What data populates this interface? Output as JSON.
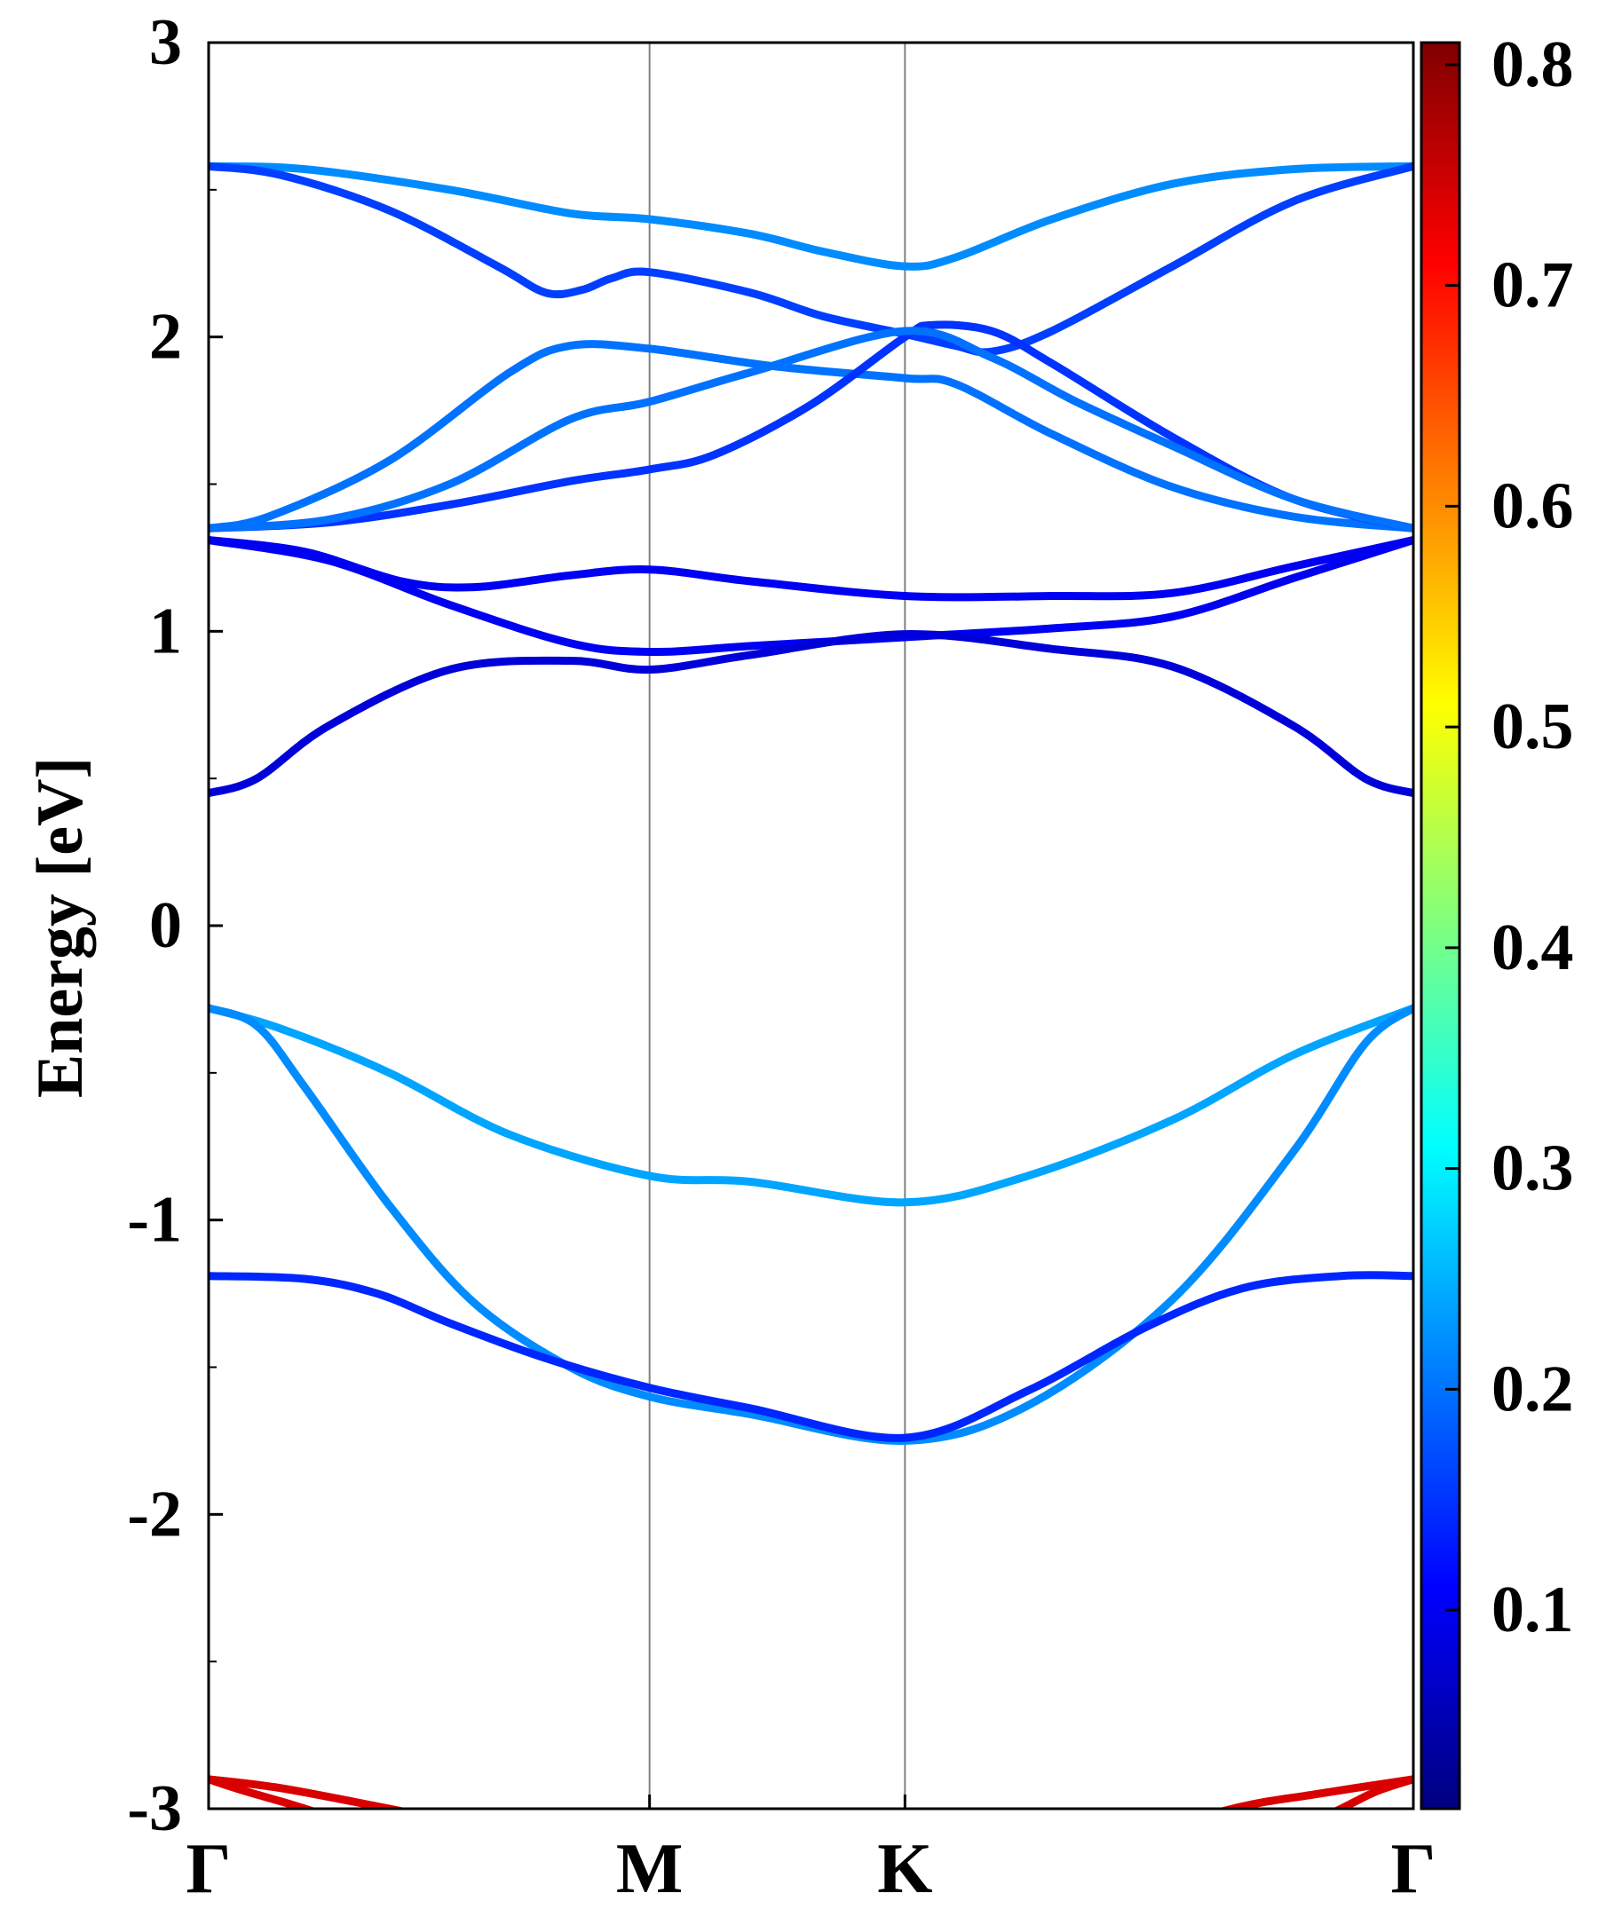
{
  "chart_data": {
    "type": "line",
    "title": "",
    "ylabel": "Energy [eV]",
    "xlabel": "",
    "ylim": [
      -3,
      3
    ],
    "y_major_ticks": [
      -3,
      -2,
      -1,
      0,
      1,
      2,
      3
    ],
    "y_tick_labels": [
      "-3",
      "-2",
      "-1",
      "0",
      "1",
      "2",
      "3"
    ],
    "y_minor_ticks": [
      -2.5,
      -1.5,
      -0.5,
      0.5,
      1.5,
      2.5
    ],
    "k_points": [
      {
        "label": "Γ",
        "x": 0.0
      },
      {
        "label": "M",
        "x": 0.366
      },
      {
        "label": "K",
        "x": 0.578
      },
      {
        "label": "Γ",
        "x": 1.0
      }
    ],
    "grid": "vertical lines at high-symmetry points",
    "colorbar": {
      "colormap": "jet",
      "range": [
        0.01,
        0.81
      ],
      "ticks": [
        0.1,
        0.2,
        0.3,
        0.4,
        0.5,
        0.6,
        0.7,
        0.8
      ],
      "tick_labels": [
        "0.1",
        "0.2",
        "0.3",
        "0.4",
        "0.5",
        "0.6",
        "0.7",
        "0.8"
      ],
      "colors": [
        "#00007f",
        "#0000ff",
        "#007fff",
        "#00ffff",
        "#7fff7f",
        "#ffff00",
        "#ff7f00",
        "#ff0000",
        "#7f0000"
      ]
    },
    "series": [
      {
        "weight": 0.22,
        "points": [
          [
            0,
            2.58
          ],
          [
            0.08,
            2.57
          ],
          [
            0.2,
            2.5
          ],
          [
            0.3,
            2.42
          ],
          [
            0.366,
            2.4
          ],
          [
            0.45,
            2.35
          ],
          [
            0.51,
            2.29
          ],
          [
            0.578,
            2.24
          ],
          [
            0.62,
            2.27
          ],
          [
            0.7,
            2.4
          ],
          [
            0.8,
            2.52
          ],
          [
            0.9,
            2.57
          ],
          [
            1,
            2.58
          ]
        ]
      },
      {
        "weight": 0.16,
        "points": [
          [
            0,
            2.58
          ],
          [
            0.06,
            2.55
          ],
          [
            0.15,
            2.43
          ],
          [
            0.24,
            2.24
          ],
          [
            0.28,
            2.15
          ],
          [
            0.31,
            2.16
          ],
          [
            0.335,
            2.2
          ],
          [
            0.366,
            2.22
          ],
          [
            0.45,
            2.15
          ],
          [
            0.51,
            2.07
          ],
          [
            0.578,
            2.01
          ],
          [
            0.62,
            1.97
          ],
          [
            0.65,
            1.95
          ],
          [
            0.7,
            2.02
          ],
          [
            0.8,
            2.24
          ],
          [
            0.9,
            2.46
          ],
          [
            1,
            2.58
          ]
        ]
      },
      {
        "weight": 0.2,
        "points": [
          [
            0,
            1.35
          ],
          [
            0.05,
            1.39
          ],
          [
            0.15,
            1.58
          ],
          [
            0.25,
            1.88
          ],
          [
            0.3,
            1.97
          ],
          [
            0.366,
            1.96
          ],
          [
            0.47,
            1.9
          ],
          [
            0.578,
            1.86
          ],
          [
            0.62,
            1.84
          ],
          [
            0.7,
            1.67
          ],
          [
            0.8,
            1.49
          ],
          [
            0.9,
            1.39
          ],
          [
            1,
            1.35
          ]
        ]
      },
      {
        "weight": 0.15,
        "points": [
          [
            0,
            1.35
          ],
          [
            0.1,
            1.37
          ],
          [
            0.2,
            1.43
          ],
          [
            0.3,
            1.51
          ],
          [
            0.366,
            1.55
          ],
          [
            0.42,
            1.6
          ],
          [
            0.5,
            1.77
          ],
          [
            0.578,
            2.0
          ],
          [
            0.6,
            2.04
          ],
          [
            0.65,
            2.02
          ],
          [
            0.7,
            1.91
          ],
          [
            0.8,
            1.66
          ],
          [
            0.9,
            1.45
          ],
          [
            1,
            1.35
          ]
        ]
      },
      {
        "weight": 0.2,
        "points": [
          [
            0,
            1.35
          ],
          [
            0.1,
            1.38
          ],
          [
            0.2,
            1.5
          ],
          [
            0.3,
            1.72
          ],
          [
            0.366,
            1.78
          ],
          [
            0.45,
            1.88
          ],
          [
            0.578,
            2.02
          ],
          [
            0.65,
            1.93
          ],
          [
            0.72,
            1.78
          ],
          [
            0.8,
            1.63
          ],
          [
            0.9,
            1.45
          ],
          [
            1,
            1.35
          ]
        ]
      },
      {
        "weight": 0.1,
        "points": [
          [
            0,
            1.31
          ],
          [
            0.08,
            1.27
          ],
          [
            0.16,
            1.17
          ],
          [
            0.22,
            1.15
          ],
          [
            0.3,
            1.19
          ],
          [
            0.366,
            1.21
          ],
          [
            0.45,
            1.17
          ],
          [
            0.578,
            1.12
          ],
          [
            0.7,
            1.12
          ],
          [
            0.8,
            1.13
          ],
          [
            0.9,
            1.22
          ],
          [
            1,
            1.31
          ]
        ]
      },
      {
        "weight": 0.1,
        "points": [
          [
            0,
            1.31
          ],
          [
            0.1,
            1.24
          ],
          [
            0.2,
            1.09
          ],
          [
            0.3,
            0.96
          ],
          [
            0.366,
            0.93
          ],
          [
            0.45,
            0.95
          ],
          [
            0.578,
            0.98
          ],
          [
            0.7,
            1.01
          ],
          [
            0.8,
            1.05
          ],
          [
            0.9,
            1.18
          ],
          [
            1,
            1.31
          ]
        ]
      },
      {
        "weight": 0.08,
        "points": [
          [
            0,
            0.45
          ],
          [
            0.04,
            0.5
          ],
          [
            0.1,
            0.68
          ],
          [
            0.2,
            0.87
          ],
          [
            0.3,
            0.9
          ],
          [
            0.366,
            0.87
          ],
          [
            0.45,
            0.92
          ],
          [
            0.578,
            0.99
          ],
          [
            0.7,
            0.94
          ],
          [
            0.8,
            0.88
          ],
          [
            0.9,
            0.68
          ],
          [
            0.96,
            0.5
          ],
          [
            1,
            0.45
          ]
        ]
      },
      {
        "weight": 0.24,
        "points": [
          [
            0,
            -0.28
          ],
          [
            0.06,
            -0.35
          ],
          [
            0.15,
            -0.5
          ],
          [
            0.25,
            -0.71
          ],
          [
            0.366,
            -0.85
          ],
          [
            0.45,
            -0.87
          ],
          [
            0.578,
            -0.94
          ],
          [
            0.68,
            -0.85
          ],
          [
            0.8,
            -0.66
          ],
          [
            0.9,
            -0.44
          ],
          [
            1,
            -0.28
          ]
        ]
      },
      {
        "weight": 0.22,
        "points": [
          [
            0,
            -0.28
          ],
          [
            0.04,
            -0.34
          ],
          [
            0.08,
            -0.55
          ],
          [
            0.15,
            -0.95
          ],
          [
            0.22,
            -1.28
          ],
          [
            0.3,
            -1.5
          ],
          [
            0.366,
            -1.6
          ],
          [
            0.45,
            -1.66
          ],
          [
            0.578,
            -1.75
          ],
          [
            0.68,
            -1.63
          ],
          [
            0.8,
            -1.27
          ],
          [
            0.9,
            -0.77
          ],
          [
            0.96,
            -0.4
          ],
          [
            1,
            -0.28
          ]
        ]
      },
      {
        "weight": 0.14,
        "points": [
          [
            0,
            -1.19
          ],
          [
            0.08,
            -1.2
          ],
          [
            0.14,
            -1.25
          ],
          [
            0.2,
            -1.35
          ],
          [
            0.28,
            -1.47
          ],
          [
            0.366,
            -1.57
          ],
          [
            0.45,
            -1.64
          ],
          [
            0.578,
            -1.74
          ],
          [
            0.68,
            -1.58
          ],
          [
            0.78,
            -1.36
          ],
          [
            0.86,
            -1.23
          ],
          [
            0.94,
            -1.19
          ],
          [
            1,
            -1.19
          ]
        ]
      },
      {
        "weight": 0.74,
        "points": [
          [
            0,
            -2.9
          ],
          [
            0.06,
            -2.93
          ],
          [
            0.15,
            -3.0
          ],
          [
            0.25,
            -3.08
          ],
          [
            0.366,
            -3.12
          ]
        ]
      },
      {
        "weight": 0.74,
        "points": [
          [
            0,
            -2.9
          ],
          [
            0.03,
            -2.94
          ],
          [
            0.08,
            -3.0
          ],
          [
            0.15,
            -3.1
          ]
        ]
      },
      {
        "weight": 0.74,
        "points": [
          [
            0.75,
            -3.12
          ],
          [
            0.85,
            -3.0
          ],
          [
            0.92,
            -2.95
          ],
          [
            1,
            -2.9
          ]
        ]
      },
      {
        "weight": 0.74,
        "points": [
          [
            0.88,
            -3.12
          ],
          [
            0.94,
            -3.0
          ],
          [
            0.97,
            -2.94
          ],
          [
            1,
            -2.9
          ]
        ]
      }
    ]
  }
}
